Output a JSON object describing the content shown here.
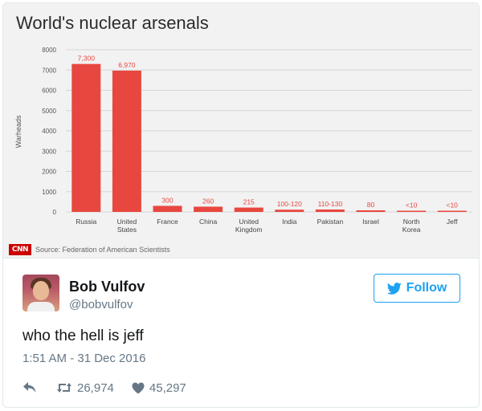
{
  "media": {
    "title": "World's nuclear arsenals",
    "logo_text": "CNN",
    "source": "Source: Federation of American Scientists"
  },
  "chart_data": {
    "type": "bar",
    "title": "World's nuclear arsenals",
    "xlabel": "",
    "ylabel": "Warheads",
    "ylim": [
      0,
      8000
    ],
    "yticks": [
      0,
      1000,
      2000,
      3000,
      4000,
      5000,
      6000,
      7000,
      8000
    ],
    "ytick_labels": [
      "0",
      "1000",
      "2000",
      "3000",
      "4000",
      "5000",
      "6000",
      "7000",
      "8000"
    ],
    "grid": true,
    "categories": [
      [
        "Russia"
      ],
      [
        "United",
        "States"
      ],
      [
        "France"
      ],
      [
        "China"
      ],
      [
        "United",
        "Kingdom"
      ],
      [
        "India"
      ],
      [
        "Pakistan"
      ],
      [
        "Israel"
      ],
      [
        "North",
        "Korea"
      ],
      [
        "Jeff"
      ]
    ],
    "values": [
      7300,
      6970,
      300,
      260,
      215,
      110,
      120,
      80,
      10,
      10
    ],
    "data_labels": [
      "7,300",
      "6,970",
      "300",
      "260",
      "215",
      "100-120",
      "110-130",
      "80",
      "<10",
      "<10"
    ],
    "bar_color": "#e8473f",
    "label_color": "#e8473f"
  },
  "author": {
    "name": "Bob Vulfov",
    "handle": "@bobvulfov",
    "avatar_icon": "profile-photo"
  },
  "follow_label": "Follow",
  "tweet": {
    "text": "who the hell is jeff",
    "timestamp": "1:51 AM - 31 Dec 2016",
    "retweets": "26,974",
    "likes": "45,297"
  },
  "colors": {
    "twitter_blue": "#1da1f2",
    "muted": "#657786",
    "text": "#14171a"
  }
}
